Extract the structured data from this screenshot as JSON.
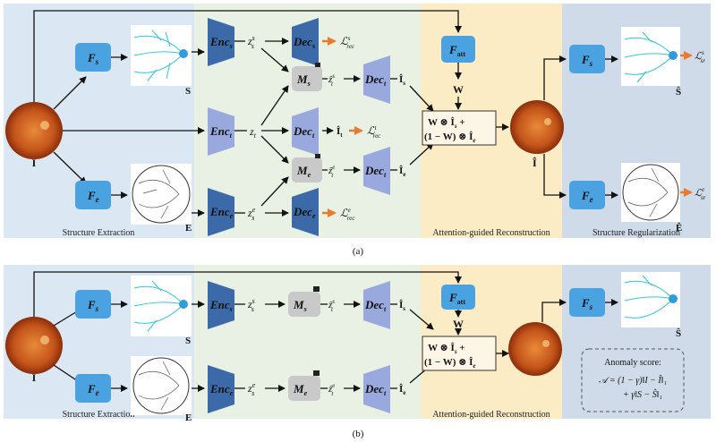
{
  "panel_a": {
    "caption": "(a)",
    "sections": {
      "extraction": "Structure Extraction",
      "reconstruction": "Attention-guided Reconstruction",
      "regularization": "Structure Regularization"
    },
    "labels": {
      "input": "I",
      "S": "S",
      "E": "E",
      "I_hat": "Î",
      "S_hat": "Ŝ",
      "E_hat": "Ê",
      "W": "W",
      "z_t": "z",
      "ihat_t": "Î",
      "ihat_s": "Î",
      "ihat_e": "Î"
    },
    "losses": {
      "rec": "ℒ",
      "sr": "ℒ"
    }
  },
  "panel_b": {
    "caption": "(b)",
    "sections": {
      "extraction": "Structure Extraction",
      "reconstruction": "Attention-guided Reconstruction"
    },
    "anomaly": {
      "title": "Anomaly score:",
      "line1": "𝒜 = (1 − γ)‖I − Î‖₁",
      "line2": "+ γ‖S − Ŝ‖₁"
    }
  },
  "blocks": {
    "Fs": "F",
    "Fe": "F",
    "Fatt": "F",
    "Enc": "Enc",
    "Dec": "Dec",
    "M": "M"
  },
  "fusion": {
    "line1": "W ⊗ Î",
    "line2": "(1 − W) ⊗ Î"
  },
  "colors": {
    "extraction_bg": "#dbe8f4",
    "middle_bg": "#e8f1e3",
    "recon_bg": "#fbecc6",
    "reg_bg": "#cfdbe8",
    "f_block": "#4aa3e0",
    "enc_dark": "#3c6aa8",
    "enc_light": "#9aa9dd",
    "m_block": "#c9c9c9",
    "orange_arrow": "#e87b2f",
    "retina": "#c4541a"
  }
}
